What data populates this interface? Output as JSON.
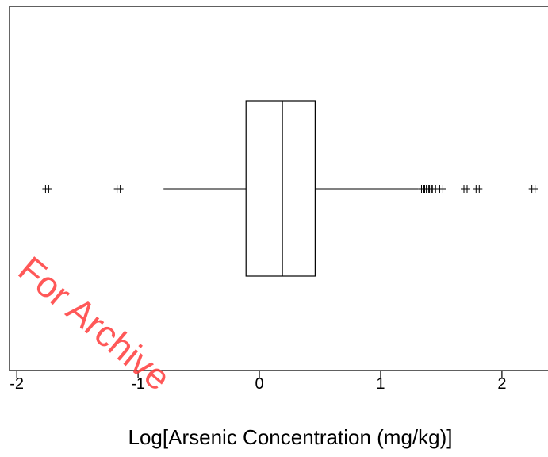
{
  "chart_data": {
    "type": "boxplot",
    "orientation": "horizontal",
    "xlabel": "Log[Arsenic Concentration (mg/kg)]",
    "watermark": "For Archive",
    "xlim": [
      -2.06,
      2.38
    ],
    "xticks": [
      -2,
      -1,
      0,
      1,
      2
    ],
    "box": {
      "whislo": -0.79,
      "q1": -0.11,
      "med": 0.19,
      "q3": 0.46,
      "whishi": 1.31,
      "fliers": [
        -1.75,
        -1.16,
        1.35,
        1.37,
        1.39,
        1.41,
        1.44,
        1.5,
        1.7,
        1.8,
        2.26
      ]
    },
    "color": "#000000"
  }
}
